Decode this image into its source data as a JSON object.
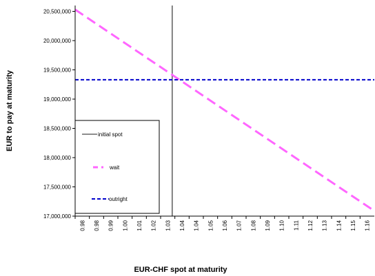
{
  "chart_data": {
    "type": "line",
    "title": "",
    "xlabel": "EUR-CHF spot at maturity",
    "ylabel": "EUR to pay at maturity",
    "xlim": [
      0.98,
      1.165
    ],
    "ylim": [
      17000000,
      20600000
    ],
    "x_ticks": [
      "0.98",
      "0.98",
      "0.99",
      "1.00",
      "1.01",
      "1.02",
      "1.03",
      "1.04",
      "1.04",
      "1.05",
      "1.06",
      "1.07",
      "1.08",
      "1.09",
      "1.10",
      "1.11",
      "1.12",
      "1.13",
      "1.14",
      "1.15",
      "1.16"
    ],
    "y_ticks": [
      "17,000,000",
      "17,500,000",
      "18,000,000",
      "18,500,000",
      "19,000,000",
      "19,500,000",
      "20,000,000",
      "20,500,000"
    ],
    "grid": false,
    "legend_position": "lower-left",
    "series": [
      {
        "name": "initial spot",
        "kind": "vertical-line",
        "color": "#666666",
        "style": "solid",
        "x": [
          1.04,
          1.04
        ],
        "y": [
          17000000,
          20600000
        ]
      },
      {
        "name": "wait",
        "kind": "line",
        "color": "#ff66ff",
        "style": "dashed",
        "x": [
          0.98,
          1.165
        ],
        "y": [
          20530000,
          17090000
        ]
      },
      {
        "name": "outright",
        "kind": "line",
        "color": "#0000cc",
        "style": "dashed",
        "x": [
          0.98,
          1.165
        ],
        "y": [
          19330000,
          19330000
        ]
      }
    ]
  }
}
